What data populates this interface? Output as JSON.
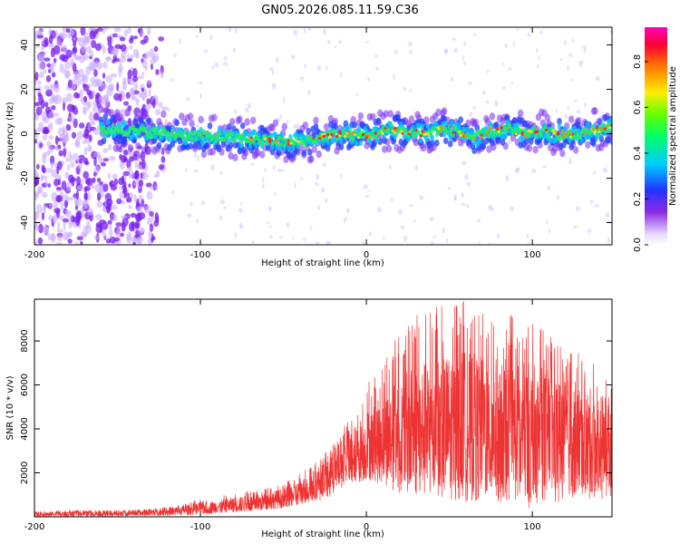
{
  "title": "GN05.2026.085.11.59.C36",
  "chart_data": [
    {
      "type": "heatmap",
      "xlabel": "Height of straight line (km)",
      "ylabel": "Frequency (Hz)",
      "xlim": [
        -200,
        148
      ],
      "ylim": [
        -50,
        48
      ],
      "x_ticks": [
        -200,
        -100,
        0,
        100
      ],
      "x_tick_labels": [
        "-200",
        "-100",
        "0",
        "100"
      ],
      "y_ticks": [
        -40,
        -20,
        0,
        20,
        40
      ],
      "y_tick_labels": [
        "-40",
        "-20",
        "0",
        "20",
        "40"
      ],
      "colorbar": {
        "label": "Normalized spectral amplitude",
        "range": [
          0,
          0.95
        ],
        "ticks": [
          0.0,
          0.2,
          0.4,
          0.6,
          0.8
        ],
        "tick_labels": [
          "0.0",
          "0.2",
          "0.4",
          "0.6",
          "0.8"
        ],
        "colormap": "rainbow (white-violet-blue-cyan-green-yellow-red-magenta)"
      },
      "ridge_trace": {
        "x": [
          -150,
          -120,
          -100,
          -80,
          -60,
          -45,
          -35,
          -25,
          -15,
          -5,
          5,
          15,
          25,
          35,
          45,
          55,
          65,
          75,
          85,
          95,
          105,
          115,
          125,
          135,
          145
        ],
        "frequency": [
          2,
          0,
          -1,
          -2,
          -3,
          -4,
          -3,
          -1,
          0,
          -1,
          0,
          2,
          1,
          0,
          2,
          1,
          -2,
          1,
          2,
          0,
          1,
          0,
          -1,
          1,
          3
        ]
      }
    },
    {
      "type": "line",
      "xlabel": "Height of straight line (km)",
      "ylabel": "SNR (10 * v/v)",
      "xlim": [
        -200,
        148
      ],
      "ylim": [
        0,
        9900
      ],
      "x_ticks": [
        -200,
        -100,
        0,
        100
      ],
      "x_tick_labels": [
        "-200",
        "-100",
        "0",
        "100"
      ],
      "y_ticks": [
        2000,
        4000,
        6000,
        8000
      ],
      "y_tick_labels": [
        "2000",
        "4000",
        "6000",
        "8000"
      ],
      "series": [
        {
          "name": "SNR",
          "color": "#ee3333",
          "envelope_x": [
            -200,
            -180,
            -160,
            -140,
            -120,
            -100,
            -90,
            -80,
            -70,
            -60,
            -50,
            -40,
            -30,
            -20,
            -10,
            0,
            10,
            20,
            30,
            40,
            50,
            60,
            70,
            80,
            90,
            100,
            110,
            120,
            130,
            140,
            148
          ],
          "envelope_low": [
            0,
            0,
            0,
            0,
            50,
            100,
            150,
            200,
            250,
            300,
            400,
            500,
            700,
            900,
            1300,
            1800,
            1700,
            1500,
            1200,
            1000,
            900,
            800,
            700,
            600,
            500,
            400,
            500,
            600,
            700,
            800,
            900
          ],
          "envelope_high": [
            250,
            300,
            300,
            320,
            450,
            800,
            900,
            1100,
            1200,
            1300,
            1600,
            2000,
            2600,
            3400,
            4500,
            6000,
            7000,
            8500,
            9200,
            9500,
            9700,
            9900,
            9400,
            9300,
            9100,
            8800,
            8300,
            7800,
            7400,
            6800,
            6500
          ],
          "envelope_mid": [
            120,
            140,
            150,
            170,
            230,
            380,
            450,
            550,
            600,
            700,
            850,
            1100,
            1500,
            2100,
            2700,
            3200,
            3500,
            3700,
            3900,
            4000,
            4100,
            4100,
            4000,
            3900,
            3900,
            3800,
            3700,
            3600,
            3500,
            3400,
            3400
          ]
        }
      ]
    }
  ]
}
